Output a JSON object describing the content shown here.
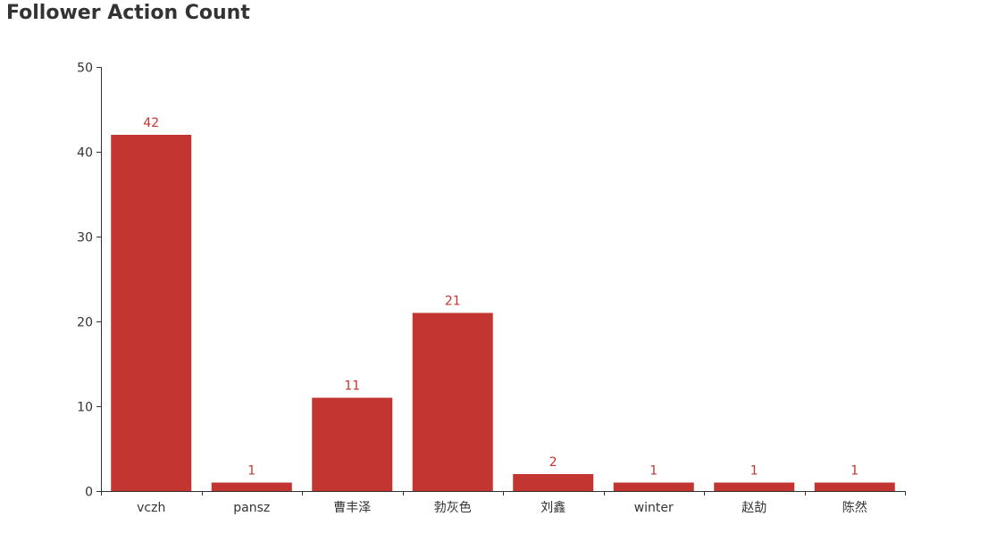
{
  "chart_data": {
    "type": "bar",
    "title": "Follower Action Count",
    "categories": [
      "vczh",
      "pansz",
      "曹丰泽",
      "勃灰色",
      "刘鑫",
      "winter",
      "赵劼",
      "陈然"
    ],
    "values": [
      42,
      1,
      11,
      21,
      2,
      1,
      1,
      1
    ],
    "ylim": [
      0,
      50
    ],
    "yticks": [
      0,
      10,
      20,
      30,
      40,
      50
    ],
    "xlabel": "",
    "ylabel": "",
    "grid": false,
    "show_data_labels": true,
    "bar_color": "#c23531",
    "label_color": "#c23531",
    "axis_color": "#333333"
  }
}
